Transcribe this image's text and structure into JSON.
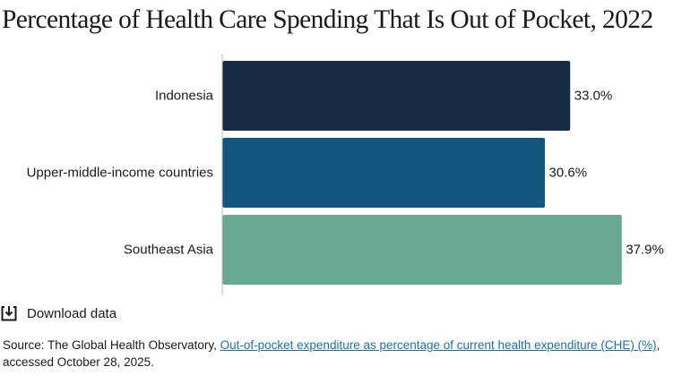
{
  "title": "Percentage of Health Care Spending That Is Out of Pocket, 2022",
  "download": {
    "label": "Download data",
    "icon": "download-icon"
  },
  "source": {
    "prefix": "Source: The Global Health Observatory, ",
    "link_text": "Out-of-pocket expenditure as percentage of current health expenditure (CHE) (%)",
    "suffix": ", accessed October 28, 2025."
  },
  "colors": {
    "Indonesia": "#172b45",
    "Upper-middle-income countries": "#12557d",
    "Southeast Asia": "#69a893",
    "axis": "#bdbdbd",
    "link": "#1e6fa8"
  },
  "chart_data": {
    "type": "bar",
    "orientation": "horizontal",
    "title": "Percentage of Health Care Spending That Is Out of Pocket, 2022",
    "categories": [
      "Indonesia",
      "Upper-middle-income countries",
      "Southeast Asia"
    ],
    "values": [
      33.0,
      30.6,
      37.9
    ],
    "value_labels": [
      "33.0%",
      "30.6%",
      "37.9%"
    ],
    "xlim": [
      0,
      40
    ],
    "grid": false,
    "legend": "none"
  }
}
